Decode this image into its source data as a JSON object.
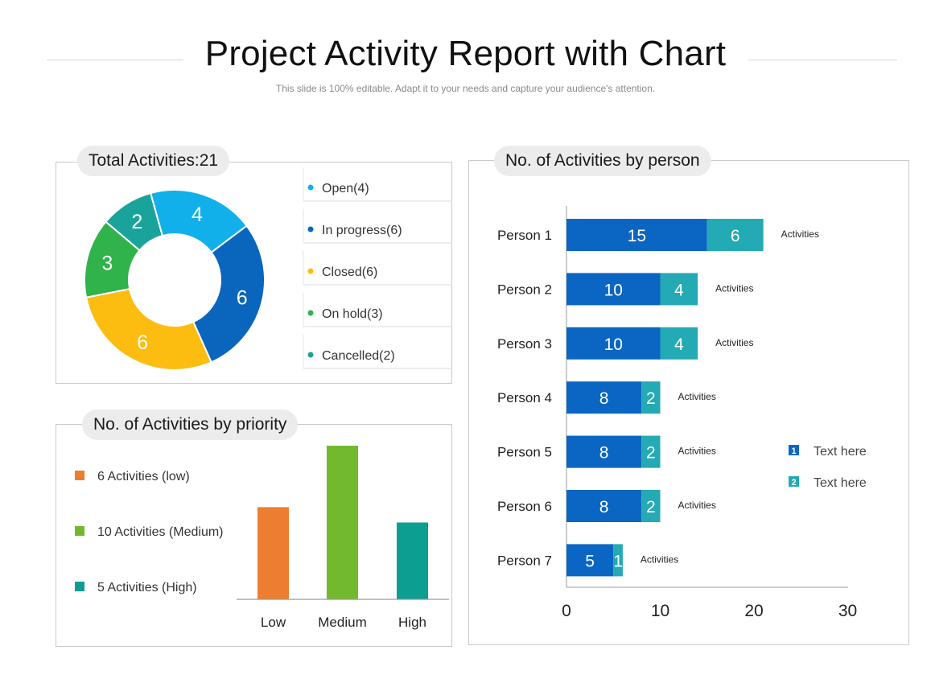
{
  "header": {
    "title": "Project Activity Report with Chart",
    "subtitle": "This slide is 100% editable. Adapt it to your needs and capture your audience's attention."
  },
  "panels": {
    "total": {
      "title": "Total Activities:21"
    },
    "priority": {
      "title": "No. of Activities by priority"
    },
    "person": {
      "title": "No. of Activities by person"
    }
  },
  "chart_data": [
    {
      "type": "pie",
      "title": "Total Activities:21",
      "slices": [
        {
          "label": "Open(4)",
          "value": 4,
          "color": "#12b0ea"
        },
        {
          "label": "In progress(6)",
          "value": 6,
          "color": "#0a65bc"
        },
        {
          "label": "Closed(6)",
          "value": 6,
          "color": "#fdbd10"
        },
        {
          "label": "On hold(3)",
          "value": 3,
          "color": "#2fb34a"
        },
        {
          "label": "Cancelled(2)",
          "value": 2,
          "color": "#1aa39a"
        }
      ],
      "legend_position": "right"
    },
    {
      "type": "bar",
      "title": "No. of Activities by priority",
      "categories": [
        "Low",
        "Medium",
        "High"
      ],
      "values": [
        6,
        10,
        5
      ],
      "colors": [
        "#ed7d31",
        "#72b92f",
        "#0d9e92"
      ],
      "legend": [
        "6 Activities (low)",
        "10 Activities (Medium)",
        "5 Activities (High)"
      ],
      "ylim": [
        0,
        10
      ],
      "legend_position": "left"
    },
    {
      "type": "bar",
      "orientation": "horizontal",
      "stacked": true,
      "title": "No. of Activities by person",
      "categories": [
        "Person 1",
        "Person 2",
        "Person 3",
        "Person 4",
        "Person 5",
        "Person 6",
        "Person 7"
      ],
      "series": [
        {
          "name": "Text here",
          "badge": "1",
          "color": "#0a66c2",
          "values": [
            15,
            10,
            10,
            8,
            8,
            8,
            5
          ]
        },
        {
          "name": "Text here",
          "badge": "2",
          "color": "#23aab5",
          "values": [
            6,
            4,
            4,
            2,
            2,
            2,
            1
          ]
        }
      ],
      "bar_end_label": "Activities",
      "xlim": [
        0,
        30
      ],
      "xticks": [
        0,
        10,
        20,
        30
      ],
      "legend_position": "right"
    }
  ]
}
